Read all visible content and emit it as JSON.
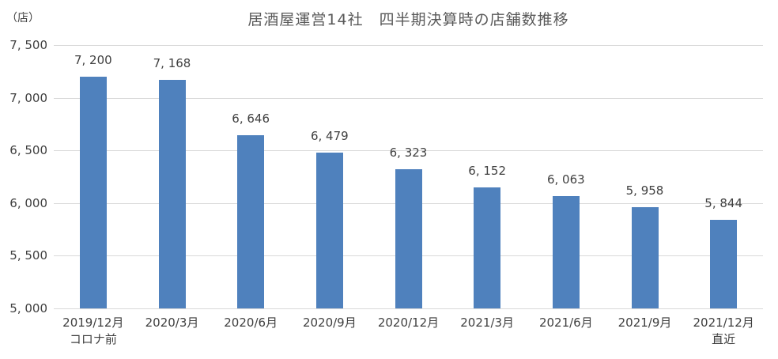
{
  "chart_data": {
    "type": "bar",
    "title": "居酒屋運営14社　四半期決算時の店舗数推移",
    "unit_label": "（店）",
    "categories": [
      {
        "line1": "2019/12月",
        "line2": "コロナ前"
      },
      {
        "line1": "2020/3月",
        "line2": ""
      },
      {
        "line1": "2020/6月",
        "line2": ""
      },
      {
        "line1": "2020/9月",
        "line2": ""
      },
      {
        "line1": "2020/12月",
        "line2": ""
      },
      {
        "line1": "2021/3月",
        "line2": ""
      },
      {
        "line1": "2021/6月",
        "line2": ""
      },
      {
        "line1": "2021/9月",
        "line2": ""
      },
      {
        "line1": "2021/12月",
        "line2": "直近"
      }
    ],
    "values": [
      7200,
      7168,
      6646,
      6479,
      6323,
      6152,
      6063,
      5958,
      5844
    ],
    "value_labels": [
      "7, 200",
      "7, 168",
      "6, 646",
      "6, 479",
      "6, 323",
      "6, 152",
      "6, 063",
      "5, 958",
      "5, 844"
    ],
    "y_ticks": [
      {
        "value": 7500,
        "label": "7, 500"
      },
      {
        "value": 7000,
        "label": "7, 000"
      },
      {
        "value": 6500,
        "label": "6, 500"
      },
      {
        "value": 6000,
        "label": "6, 000"
      },
      {
        "value": 5500,
        "label": "5, 500"
      },
      {
        "value": 5000,
        "label": "5, 000"
      }
    ],
    "ylim": [
      5000,
      7500
    ],
    "xlabel": "",
    "ylabel": "",
    "grid": true,
    "legend": "none",
    "colors": {
      "bar": "#4f81bd",
      "gridline": "#d9d9d9",
      "title_text": "#595959",
      "axis_text": "#404040"
    }
  }
}
